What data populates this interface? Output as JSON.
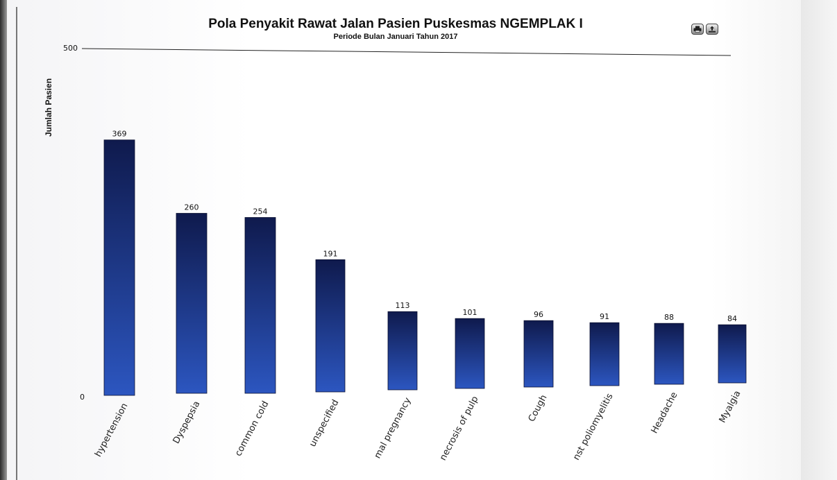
{
  "header": {
    "title": "Pola Penyakit Rawat Jalan Pasien Puskesmas NGEMPLAK I",
    "subtitle": "Periode Bulan Januari Tahun 2017"
  },
  "toolbar": {
    "print_icon": "printer-icon",
    "export_icon": "export-icon"
  },
  "chart_data": {
    "type": "bar",
    "title": "Pola Penyakit Rawat Jalan Pasien Puskesmas NGEMPLAK I",
    "subtitle": "Periode Bulan Januari Tahun 2017",
    "xlabel": "",
    "ylabel": "Jumlah Pasien",
    "ylim": [
      0,
      500
    ],
    "yticks": [
      "0",
      "500"
    ],
    "categories": [
      "hypertension",
      "Dyspepsia",
      "common cold",
      "unspecified",
      "mal pregnancy",
      "necrosis of pulp",
      "Cough",
      "nst poliomyelitis",
      "Headache",
      "Myalgia"
    ],
    "values": [
      369,
      260,
      254,
      191,
      113,
      101,
      96,
      91,
      88,
      84
    ],
    "colors": {
      "bar_top": "#0f1a4d",
      "bar_bottom": "#2c56c0",
      "axis": "#222222"
    },
    "grid": false,
    "legend": "none"
  }
}
